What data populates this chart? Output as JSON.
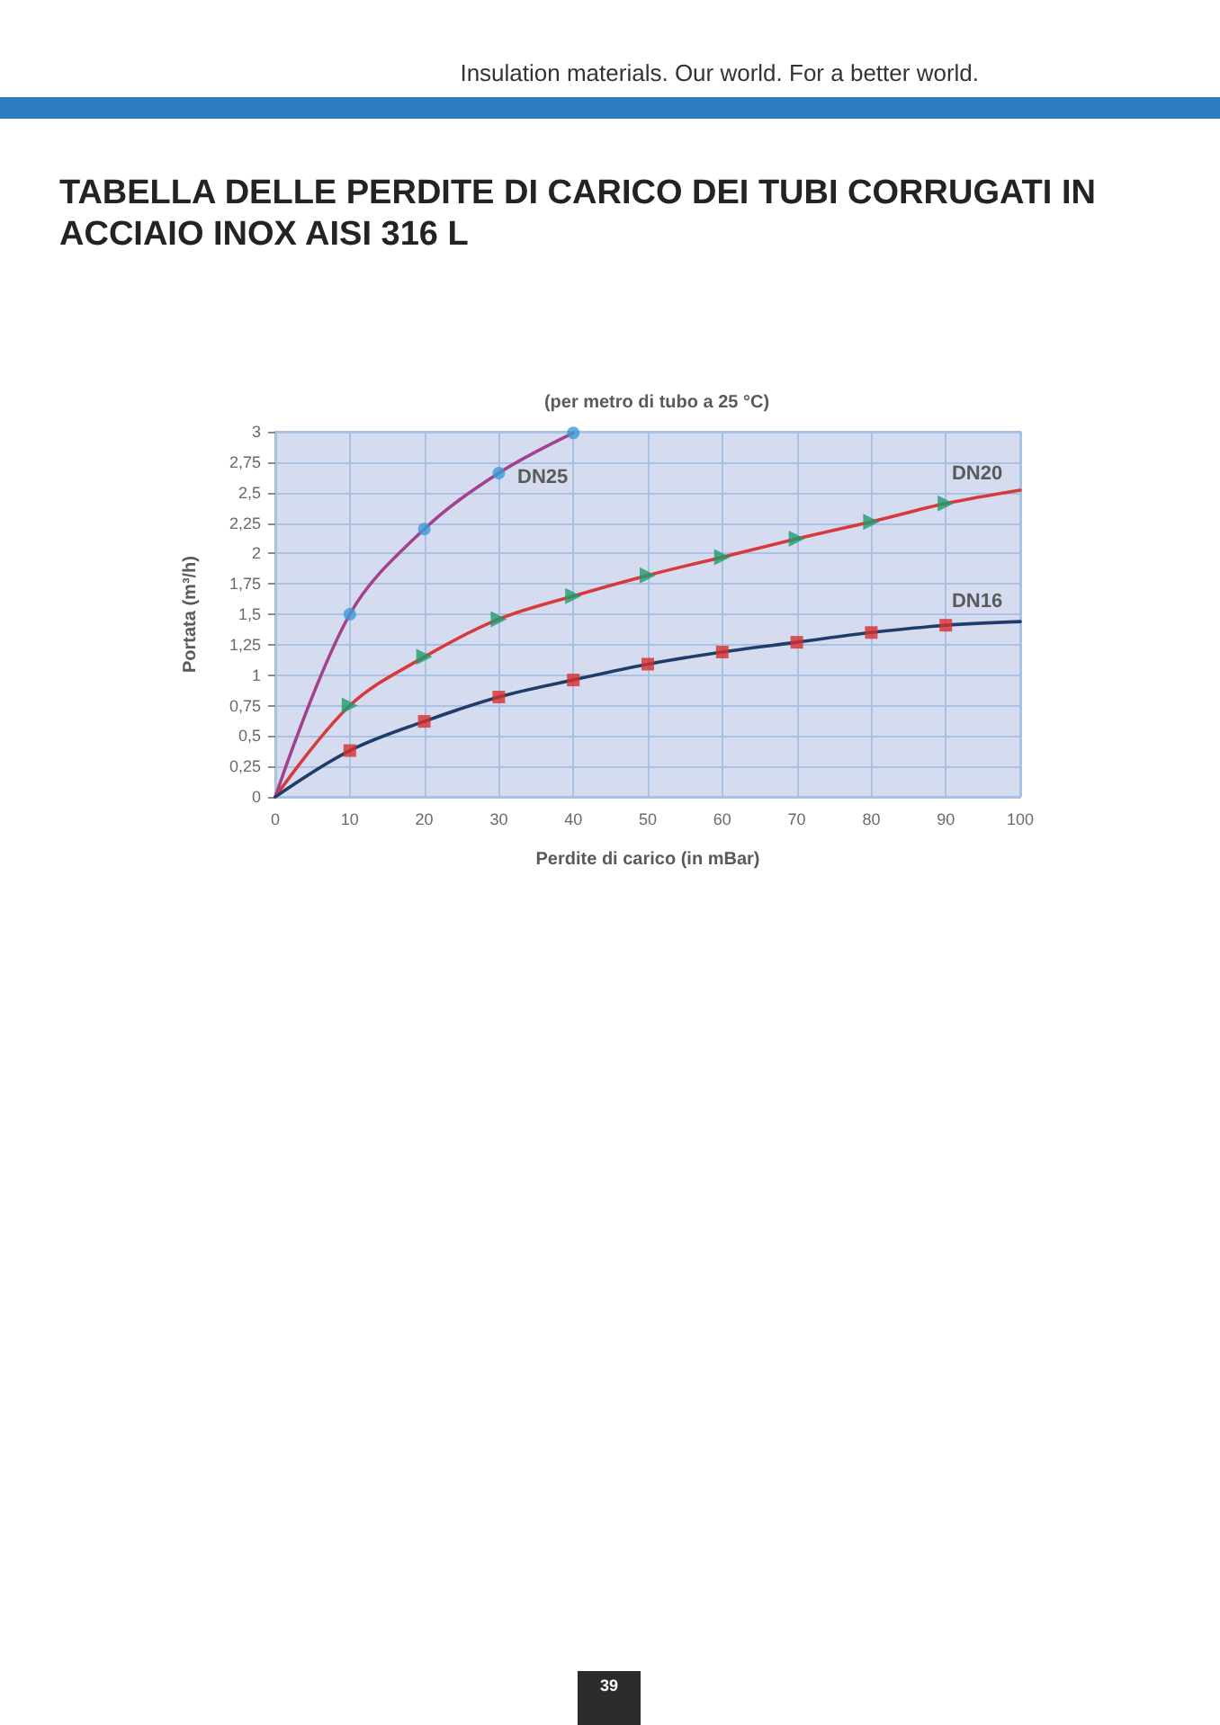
{
  "chart_data": {
    "type": "line",
    "title": "TABELLA DELLE PERDITE DI CARICO DEI TUBI CORRUGATI IN ACCIAIO INOX AISI 316 L",
    "subtitle": "(per metro di tubo a 25 °C)",
    "xlabel": "Perdite di carico (in mBar)",
    "ylabel": "Portata (m³/h)",
    "series": [
      {
        "name": "DN25",
        "color": "#a3418e",
        "marker": "none",
        "x": [
          0,
          10,
          20,
          30,
          40
        ],
        "values": [
          0,
          1.5,
          2.2,
          2.66,
          2.99
        ]
      },
      {
        "name": "DN20",
        "color": "#d8393c",
        "marker": "none",
        "x": [
          0,
          10,
          20,
          30,
          40,
          50,
          60,
          70,
          80,
          90,
          100
        ],
        "values": [
          0,
          0.75,
          1.15,
          1.46,
          1.65,
          1.82,
          1.97,
          2.12,
          2.26,
          2.41,
          2.52
        ]
      },
      {
        "name": "DN16",
        "color": "#1f3d6b",
        "marker": "none",
        "x": [
          0,
          10,
          20,
          30,
          40,
          50,
          60,
          70,
          80,
          90,
          100
        ],
        "values": [
          0,
          0.38,
          0.62,
          0.82,
          0.96,
          1.09,
          1.19,
          1.27,
          1.35,
          1.41,
          1.44
        ]
      },
      {
        "type": "scatter",
        "color": "#3c9bd8",
        "marker": "circle",
        "x": [
          10,
          20,
          30,
          40
        ],
        "values": [
          1.5,
          2.2,
          2.66,
          2.99
        ]
      },
      {
        "type": "scatter",
        "color": "#1e9c6c",
        "marker": "triangle",
        "x": [
          10,
          20,
          30,
          40,
          50,
          60,
          70,
          80,
          90
        ],
        "values": [
          0.75,
          1.15,
          1.46,
          1.65,
          1.82,
          1.97,
          2.12,
          2.26,
          2.41
        ]
      },
      {
        "type": "scatter",
        "color": "#d8302e",
        "marker": "square",
        "x": [
          10,
          20,
          30,
          40,
          50,
          60,
          70,
          80,
          90
        ],
        "values": [
          0.38,
          0.62,
          0.82,
          0.96,
          1.09,
          1.19,
          1.27,
          1.35,
          1.41
        ]
      }
    ],
    "xlim": [
      0,
      100
    ],
    "xticks": [
      0,
      10,
      20,
      30,
      40,
      50,
      60,
      70,
      80,
      90,
      100
    ],
    "ylim": [
      0,
      3
    ],
    "yticks": [
      0,
      {
        "value": 0.25,
        "label": "0,25"
      },
      {
        "value": 0.5,
        "label": "0,5"
      },
      {
        "value": 0.75,
        "label": "0,75"
      },
      1,
      {
        "value": 1.25,
        "label": "1,25"
      },
      {
        "value": 1.5,
        "label": "1,5"
      },
      {
        "value": 1.75,
        "label": "1,75"
      },
      2,
      {
        "value": 2.25,
        "label": "2,25"
      },
      {
        "value": 2.5,
        "label": "2,5"
      },
      {
        "value": 2.75,
        "label": "2,75"
      },
      3
    ],
    "grid": true,
    "annotations": [
      "Insulation materials. Our world. For a better world.",
      "39"
    ]
  }
}
